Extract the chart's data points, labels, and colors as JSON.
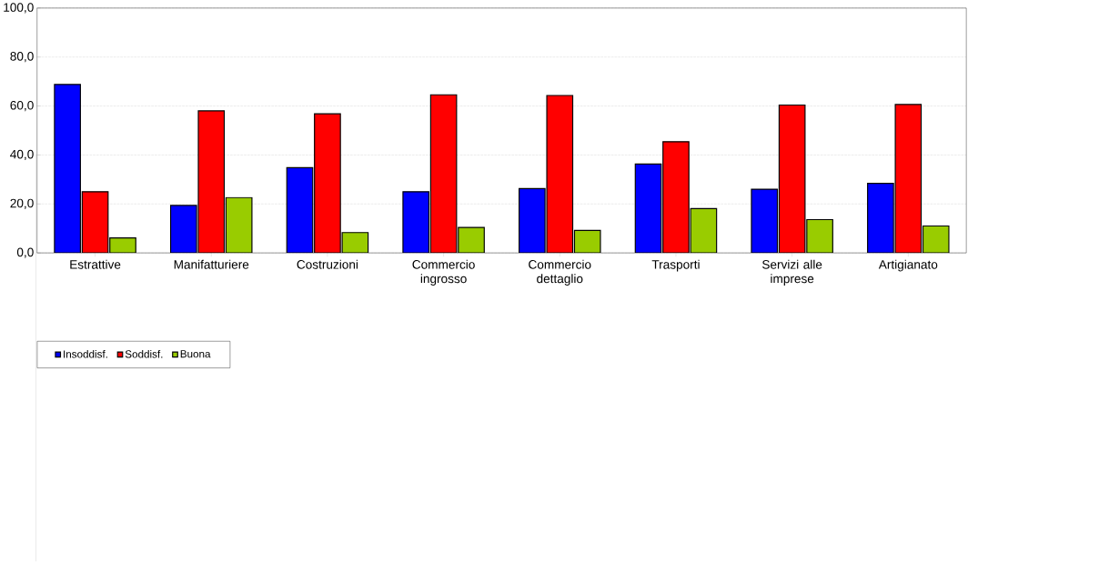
{
  "chart_data": {
    "type": "bar",
    "categories": [
      "Estrattive",
      "Manifatturiere",
      "Costruzioni",
      "Commercio ingrosso",
      "Commercio dettaglio",
      "Trasporti",
      "Servizi alle imprese",
      "Artigianato"
    ],
    "series": [
      {
        "name": "Insoddisf.",
        "color": "#0000ff",
        "values": [
          68.8,
          19.4,
          34.8,
          25.0,
          26.3,
          36.3,
          26.0,
          28.4
        ]
      },
      {
        "name": "Soddisf.",
        "color": "#ff0000",
        "values": [
          25.0,
          58.0,
          56.8,
          64.6,
          64.3,
          45.4,
          60.4,
          60.6
        ]
      },
      {
        "name": "Buona",
        "color": "#99cc00",
        "values": [
          6.1,
          22.6,
          8.3,
          10.4,
          9.2,
          18.1,
          13.6,
          11.0
        ]
      }
    ],
    "ylim": [
      0,
      100
    ],
    "yticks": [
      {
        "value": 0,
        "label": "0,0"
      },
      {
        "value": 20,
        "label": "20,0"
      },
      {
        "value": 40,
        "label": "40,0"
      },
      {
        "value": 60,
        "label": "60,0"
      },
      {
        "value": 80,
        "label": "80,0"
      },
      {
        "value": 100,
        "label": "100,0"
      }
    ],
    "grid": "y",
    "legend": "bottom left"
  }
}
